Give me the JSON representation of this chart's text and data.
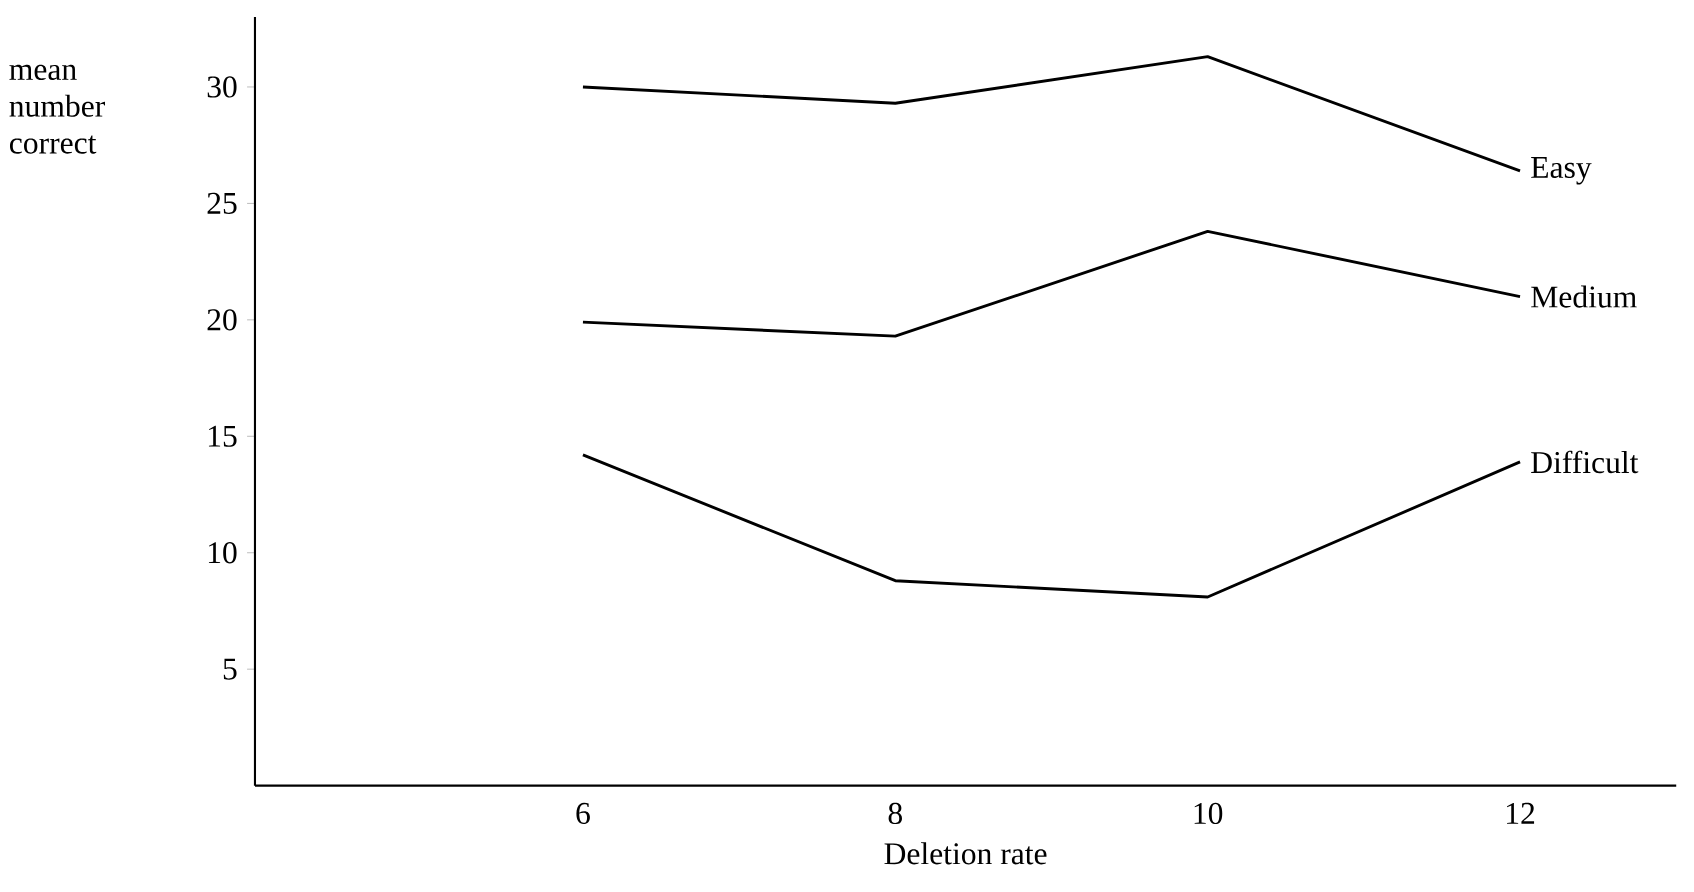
{
  "chart_data": {
    "type": "line",
    "xlabel": "Deletion rate",
    "ylabel": "mean number correct",
    "x": [
      6,
      8,
      10,
      12
    ],
    "series": [
      {
        "name": "Easy",
        "color": "#000000",
        "values": [
          30,
          29.3,
          31.3,
          26.4
        ]
      },
      {
        "name": "Medium",
        "color": "#000000",
        "values": [
          19.9,
          19.3,
          23.8,
          21.0
        ]
      },
      {
        "name": "Difficult",
        "color": "#000000",
        "values": [
          14.2,
          8.8,
          8.1,
          13.9
        ]
      }
    ],
    "xlim": [
      3.9,
      13
    ],
    "ylim": [
      0,
      33
    ],
    "xticks": [
      6,
      8,
      10,
      12
    ],
    "yticks": [
      5,
      10,
      15,
      20,
      25,
      30
    ],
    "grid": false,
    "legend": false,
    "marker": "none",
    "line_style": "solid"
  }
}
